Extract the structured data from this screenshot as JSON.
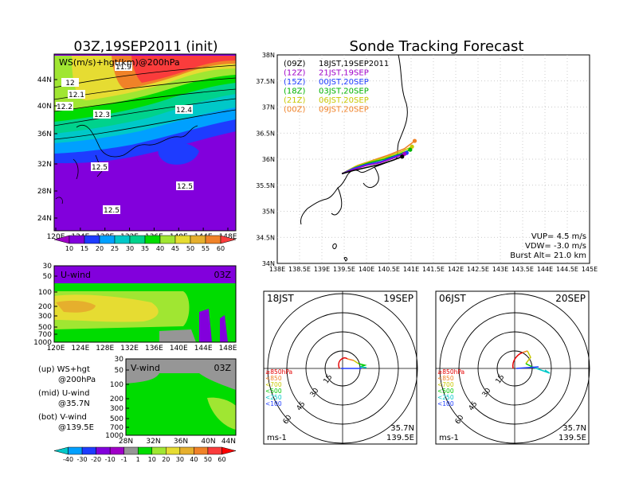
{
  "left_title": "03Z,19SEP2011 (init)",
  "right_title": "Sonde Tracking Forecast",
  "panel_ws": {
    "label": "WS(m/s)+hgt(km)@200hPa",
    "contour_labels": [
      "11.9",
      "12",
      "12.1",
      "12.2",
      "12.3",
      "12.4",
      "12.5",
      "12.5",
      "12.5"
    ],
    "x_ticks": [
      "120E",
      "124E",
      "128E",
      "132E",
      "136E",
      "140E",
      "144E",
      "148E"
    ],
    "y_ticks": [
      "44N",
      "40N",
      "36N",
      "32N",
      "28N",
      "24N"
    ],
    "colorbar": [
      "10",
      "15",
      "20",
      "25",
      "30",
      "35",
      "40",
      "45",
      "50",
      "55",
      "60"
    ],
    "colorbar_colors": [
      "#a000c8",
      "#8200dc",
      "#1e3cff",
      "#00a0ff",
      "#00c8c8",
      "#00d28c",
      "#00dc00",
      "#a0e632",
      "#e6dc32",
      "#e6af2d",
      "#f08228",
      "#fa3c3c"
    ]
  },
  "panel_u": {
    "label": "U-wind",
    "time": "03Z",
    "y_ticks": [
      "30",
      "50",
      "100",
      "200",
      "300",
      "500",
      "700",
      "1000"
    ],
    "x_ticks": [
      "120E",
      "124E",
      "128E",
      "132E",
      "136E",
      "140E",
      "144E",
      "148E"
    ]
  },
  "panel_v": {
    "label": "V-wind",
    "time": "03Z",
    "y_ticks": [
      "30",
      "50",
      "100",
      "200",
      "300",
      "500",
      "700",
      "1000"
    ],
    "x_ticks": [
      "28N",
      "32N",
      "36N",
      "40N",
      "44N"
    ],
    "colorbar": [
      "-40",
      "-30",
      "-20",
      "-10",
      "-1",
      "1",
      "10",
      "20",
      "30",
      "40",
      "50",
      "60"
    ],
    "colorbar_colors": [
      "#00c8c8",
      "#00a0ff",
      "#1e3cff",
      "#8200dc",
      "#a000c8",
      "#969696",
      "#00dc00",
      "#a0e632",
      "#e6dc32",
      "#e6af2d",
      "#f08228",
      "#fa3c3c",
      "#ff0000"
    ]
  },
  "legend_notes": [
    {
      "l1": "(up) WS+hgt",
      "l2": "@200hPa"
    },
    {
      "l1": "(mid) U-wind",
      "l2": "@35.7N"
    },
    {
      "l1": "(bot) V-wind",
      "l2": "@139.5E"
    }
  ],
  "track_legend": [
    {
      "code": "(09Z)",
      "label": "18JST,19SEP2011",
      "color": "#000000"
    },
    {
      "code": "(12Z)",
      "label": "21JST,19SEP",
      "color": "#a000c8"
    },
    {
      "code": "(15Z)",
      "label": "00JST,20SEP",
      "color": "#1e3cff"
    },
    {
      "code": "(18Z)",
      "label": "03JST,20SEP",
      "color": "#00b400"
    },
    {
      "code": "(21Z)",
      "label": "06JST,20SEP",
      "color": "#c8c800"
    },
    {
      "code": "(00Z)",
      "label": "09JST,20SEP",
      "color": "#f08228"
    }
  ],
  "track_stats": [
    "VUP= 4.5 m/s",
    "VDW= -3.0 m/s",
    "Burst Alt= 21.0 km"
  ],
  "chart_data": {
    "type": "line",
    "title": "Sonde Tracking Forecast",
    "xlim": [
      138,
      145
    ],
    "ylim": [
      34,
      38
    ],
    "x_ticks": [
      "138E",
      "138.5E",
      "139E",
      "139.5E",
      "140E",
      "140.5E",
      "141E",
      "141.5E",
      "142E",
      "142.5E",
      "143E",
      "143.5E",
      "144E",
      "144.5E",
      "145E"
    ],
    "y_ticks": [
      "38N",
      "37.5N",
      "37N",
      "36.5N",
      "36N",
      "35.5N",
      "35N",
      "34.5N",
      "34N"
    ],
    "series": [
      {
        "name": "(09Z)",
        "color": "#000000",
        "points": [
          [
            139.45,
            35.72
          ],
          [
            139.7,
            35.78
          ],
          [
            140.0,
            35.84
          ],
          [
            140.3,
            35.9
          ],
          [
            140.6,
            35.98
          ],
          [
            140.8,
            36.05
          ]
        ]
      },
      {
        "name": "(12Z)",
        "color": "#a000c8",
        "points": [
          [
            139.45,
            35.72
          ],
          [
            139.7,
            35.8
          ],
          [
            140.0,
            35.88
          ],
          [
            140.3,
            35.93
          ],
          [
            140.6,
            36.02
          ],
          [
            140.85,
            36.1
          ]
        ]
      },
      {
        "name": "(15Z)",
        "color": "#1e3cff",
        "points": [
          [
            139.45,
            35.72
          ],
          [
            139.7,
            35.82
          ],
          [
            140.0,
            35.9
          ],
          [
            140.35,
            35.96
          ],
          [
            140.65,
            36.06
          ],
          [
            140.9,
            36.12
          ]
        ]
      },
      {
        "name": "(18Z)",
        "color": "#00b400",
        "points": [
          [
            139.45,
            35.72
          ],
          [
            139.75,
            35.84
          ],
          [
            140.05,
            35.93
          ],
          [
            140.4,
            36.0
          ],
          [
            140.75,
            36.1
          ],
          [
            140.98,
            36.18
          ]
        ]
      },
      {
        "name": "(21Z)",
        "color": "#c8c800",
        "points": [
          [
            139.45,
            35.72
          ],
          [
            139.75,
            35.86
          ],
          [
            140.1,
            35.96
          ],
          [
            140.45,
            36.04
          ],
          [
            140.8,
            36.15
          ],
          [
            141.02,
            36.24
          ]
        ]
      },
      {
        "name": "(00Z)",
        "color": "#f08228",
        "points": [
          [
            139.45,
            35.72
          ],
          [
            139.8,
            35.88
          ],
          [
            140.15,
            35.98
          ],
          [
            140.5,
            36.08
          ],
          [
            140.85,
            36.2
          ],
          [
            141.08,
            36.35
          ]
        ]
      }
    ]
  },
  "hodographs": [
    {
      "left": "18JST",
      "right": "19SEP",
      "lat": "35.7N",
      "lon": "139.5E",
      "unit": "ms-1"
    },
    {
      "left": "06JST",
      "right": "20SEP",
      "lat": "35.7N",
      "lon": "139.5E",
      "unit": "ms-1"
    }
  ],
  "hodo_rings": [
    "15",
    "30",
    "45",
    "60"
  ],
  "hodo_levels": [
    {
      "label": "≥850hPa",
      "color": "#e60000"
    },
    {
      "label": "<850",
      "color": "#f08228"
    },
    {
      "label": "<700",
      "color": "#c8c800"
    },
    {
      "label": "<500",
      "color": "#00c800"
    },
    {
      "label": "<250",
      "color": "#00c8c8"
    },
    {
      "label": "<100",
      "color": "#1e3cff"
    }
  ]
}
